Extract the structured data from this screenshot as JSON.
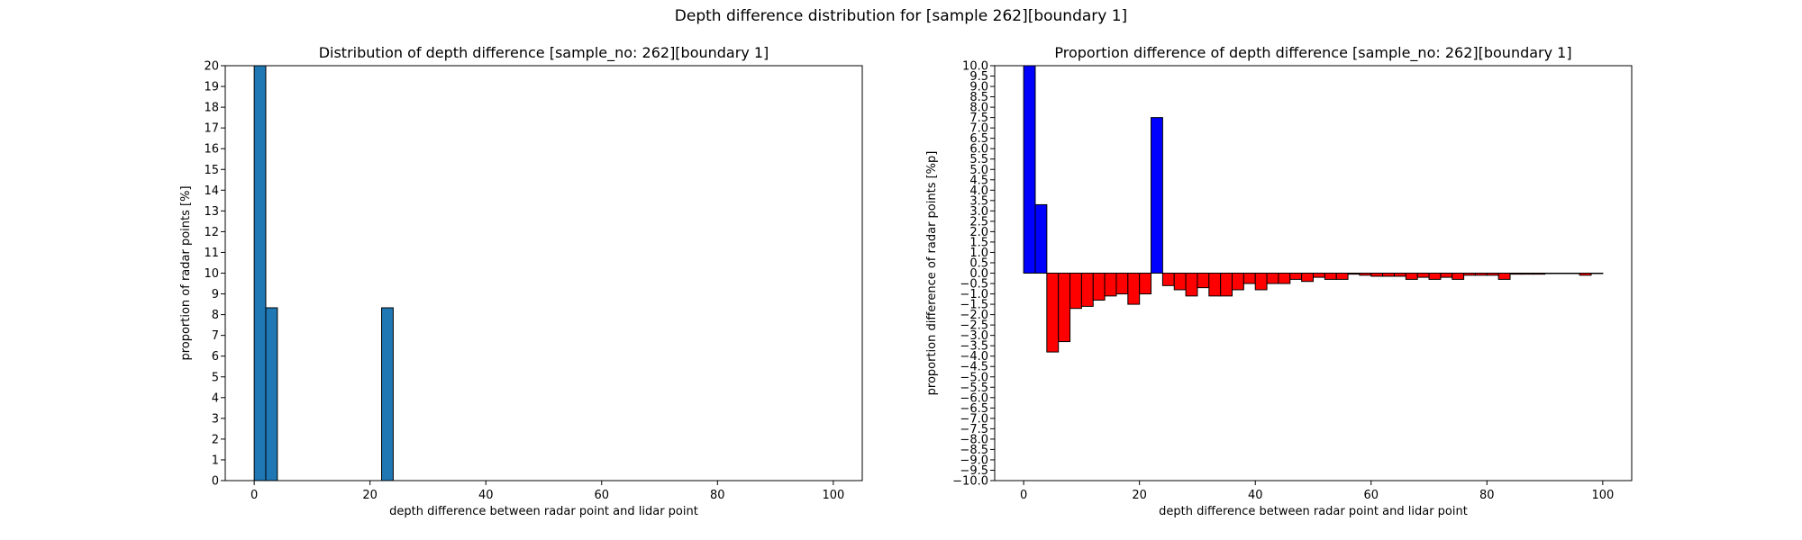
{
  "suptitle": "Depth difference distribution for [sample 262][boundary 1]",
  "chart_data": [
    {
      "type": "bar",
      "title": "Distribution of depth difference [sample_no: 262][boundary 1]",
      "xlabel": "depth difference between radar point and lidar point",
      "ylabel": "proportion of radar points [%]",
      "xlim": [
        -5,
        105
      ],
      "ylim": [
        0,
        20
      ],
      "xticks": [
        0,
        20,
        40,
        60,
        80,
        100
      ],
      "yticks": [
        0,
        1,
        2,
        3,
        4,
        5,
        6,
        7,
        8,
        9,
        10,
        11,
        12,
        13,
        14,
        15,
        16,
        17,
        18,
        19,
        20
      ],
      "bin_width": 2,
      "bins": [
        0,
        2,
        22
      ],
      "values": [
        20,
        8.33,
        8.33
      ],
      "bar_color": "#1f77b4"
    },
    {
      "type": "bar",
      "title": "Proportion difference of depth difference [sample_no: 262][boundary 1]",
      "xlabel": "depth difference between radar point and lidar point",
      "ylabel": "proportion difference of radar points [%p]",
      "xlim": [
        -5,
        105
      ],
      "ylim": [
        -10,
        10
      ],
      "xticks": [
        0,
        20,
        40,
        60,
        80,
        100
      ],
      "yticks": [
        -10,
        -9.5,
        -9,
        -8.5,
        -8,
        -7.5,
        -7,
        -6.5,
        -6,
        -5.5,
        -5,
        -4.5,
        -4,
        -3.5,
        -3,
        -2.5,
        -2,
        -1.5,
        -1,
        -0.5,
        0,
        0.5,
        1,
        1.5,
        2,
        2.5,
        3,
        3.5,
        4,
        4.5,
        5,
        5.5,
        6,
        6.5,
        7,
        7.5,
        8,
        8.5,
        9,
        9.5,
        10
      ],
      "bin_width": 2,
      "bins": [
        0,
        2,
        4,
        6,
        8,
        10,
        12,
        14,
        16,
        18,
        20,
        22,
        24,
        26,
        28,
        30,
        32,
        34,
        36,
        38,
        40,
        42,
        44,
        46,
        48,
        50,
        52,
        54,
        56,
        58,
        60,
        62,
        64,
        66,
        68,
        70,
        72,
        74,
        76,
        78,
        80,
        82,
        84,
        86,
        88,
        90,
        92,
        94,
        96,
        98
      ],
      "values": [
        10,
        3.3,
        -3.8,
        -3.3,
        -1.7,
        -1.6,
        -1.3,
        -1.1,
        -1.0,
        -1.5,
        -1.0,
        7.5,
        -0.6,
        -0.8,
        -1.1,
        -0.7,
        -1.1,
        -1.1,
        -0.8,
        -0.5,
        -0.8,
        -0.5,
        -0.5,
        -0.3,
        -0.4,
        -0.2,
        -0.3,
        -0.3,
        -0.05,
        -0.1,
        -0.15,
        -0.15,
        -0.15,
        -0.3,
        -0.2,
        -0.3,
        -0.2,
        -0.3,
        -0.1,
        -0.1,
        -0.1,
        -0.3,
        -0.05,
        -0.05,
        -0.05,
        -0.02,
        -0.02,
        -0.02,
        -0.1,
        -0.02
      ],
      "positive_color": "#0000ff",
      "negative_color": "#ff0000"
    }
  ]
}
